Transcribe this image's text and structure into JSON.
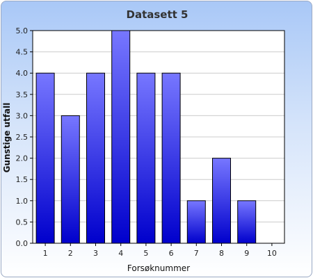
{
  "chart_data": {
    "type": "bar",
    "title": "Datasett 5",
    "xlabel": "Forsøknummer",
    "ylabel": "Gunstige utfall",
    "categories": [
      "1",
      "2",
      "3",
      "4",
      "5",
      "6",
      "7",
      "8",
      "9",
      "10"
    ],
    "values": [
      4,
      3,
      4,
      5,
      4,
      4,
      1,
      2,
      1,
      0
    ],
    "ylim": [
      0,
      5
    ],
    "yticks": [
      "0.0",
      "0.5",
      "1.0",
      "1.5",
      "2.0",
      "2.5",
      "3.0",
      "3.5",
      "4.0",
      "4.5",
      "5.0"
    ],
    "grid": true,
    "legend": "none",
    "colors": {
      "bar_top": "#7777ff",
      "bar_bottom": "#0000cc",
      "bar_stroke": "#000000",
      "plot_bg": "#ffffff",
      "grid": "#cccccc"
    }
  }
}
